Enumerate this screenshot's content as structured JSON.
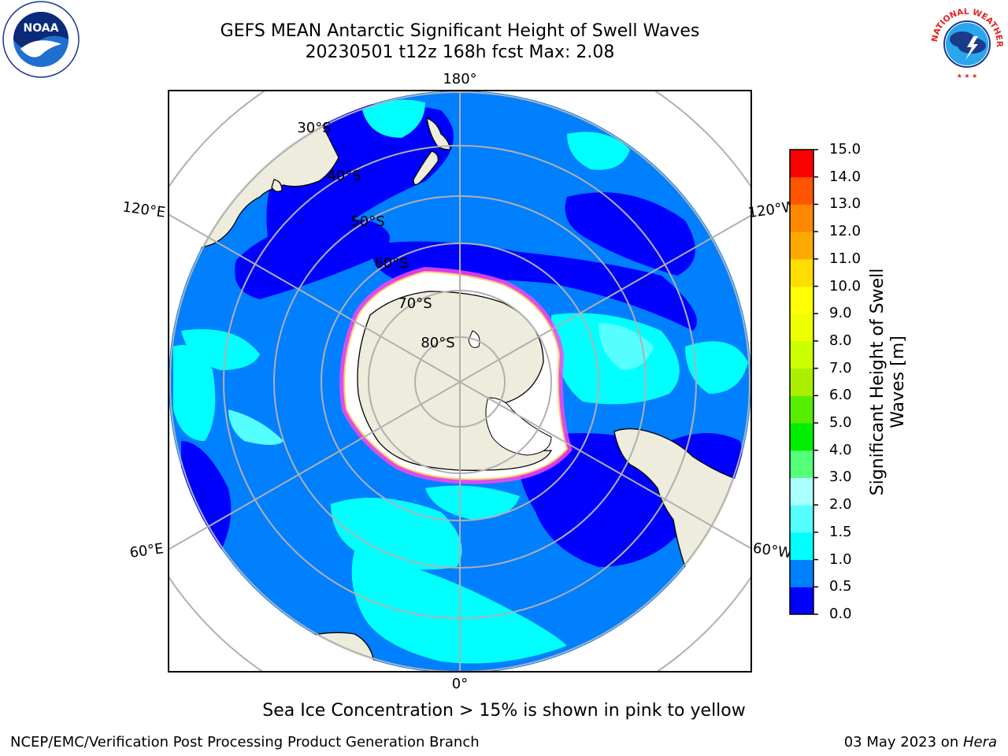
{
  "title": {
    "line1": "GEFS MEAN Antarctic Significant Height of Swell Waves",
    "line2": "20230501 t12z 168h fcst   Max: 2.08"
  },
  "logos": {
    "left": "noaa-logo",
    "left_text": "NOAA",
    "right": "national-weather-service-logo",
    "right_text": "NATIONAL WEATHER SERVICE"
  },
  "map": {
    "projection": "south-polar-stereographic",
    "longitude_labels": [
      "180°",
      "120°E",
      "120°W",
      "60°E",
      "60°W",
      "0°"
    ],
    "latitude_labels": [
      "30°S",
      "40°S",
      "50°S",
      "60°S",
      "70°S",
      "80°S"
    ],
    "colors": {
      "ocean_low": "#0000ff",
      "ocean_mid": "#007fff",
      "ocean_high": "#00ffff",
      "land": "#eeecdc",
      "sea_ice": "#ff44ee",
      "grid": "#b0b0b0"
    }
  },
  "colorbar": {
    "title": "Significant Height of Swell Waves [m]",
    "ticks": [
      "0.0",
      "0.5",
      "1.0",
      "1.5",
      "2.0",
      "3.0",
      "4.0",
      "5.0",
      "6.0",
      "7.0",
      "8.0",
      "9.0",
      "10.0",
      "11.0",
      "12.0",
      "13.0",
      "14.0",
      "15.0"
    ],
    "colors": [
      "#0000ff",
      "#007fff",
      "#00ffff",
      "#55ffff",
      "#aaffff",
      "#55ff77",
      "#00ee00",
      "#55ee00",
      "#aaee00",
      "#ccff00",
      "#eeff00",
      "#ffff00",
      "#ffdd00",
      "#ffaa00",
      "#ff8800",
      "#ff5500",
      "#ff0000"
    ]
  },
  "note": "Sea Ice Concentration > 15% is shown in pink to yellow",
  "footer": {
    "left": "NCEP/EMC/Verification Post Processing Product Generation Branch",
    "right_date": "03 May 2023 on ",
    "right_host": "Hera"
  }
}
